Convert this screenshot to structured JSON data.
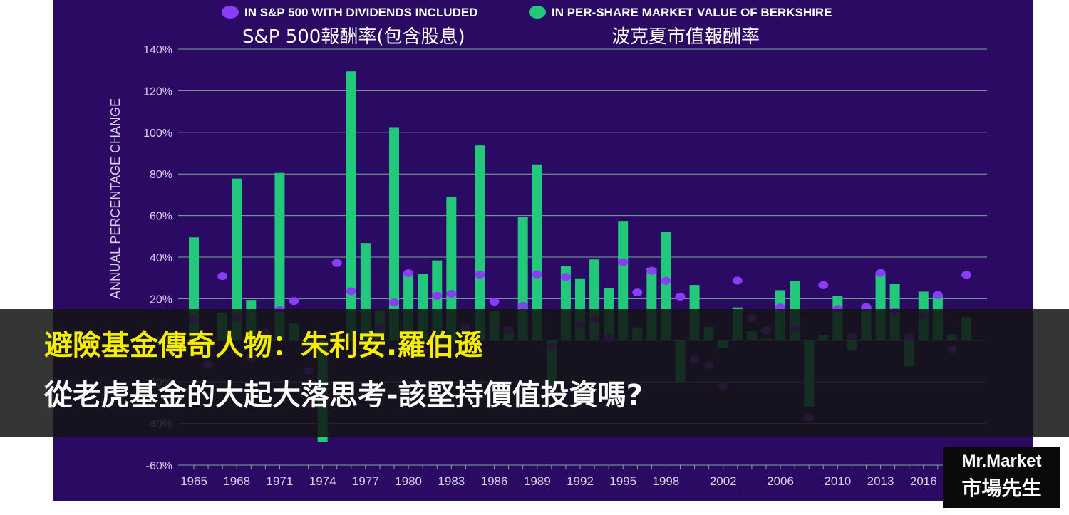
{
  "legend": {
    "sp500_label": "IN S&P 500 WITH DIVIDENDS INCLUDED",
    "berkshire_label": "IN PER-SHARE MARKET VALUE OF BERKSHIRE",
    "sp500_label_zh": "S&P 500報酬率(包含股息)",
    "berkshire_label_zh": "波克夏市值報酬率"
  },
  "headline": {
    "line1": "避險基金傳奇人物：朱利安.羅伯遜",
    "line2": "從老虎基金的大起大落思考-該堅持價值投資嗎?"
  },
  "brand": {
    "name_en": "Mr.Market",
    "name_zh": "市場先生"
  },
  "colors": {
    "background": "#2a0a63",
    "berkshire": "#22c97a",
    "sp500": "#8a3cff",
    "grid": "#7fa79a"
  },
  "chart_data": {
    "type": "bar",
    "ylabel": "ANNUAL PERCENTAGE CHANGE",
    "ylim": [
      -60,
      140
    ],
    "y_ticks": [
      "140%",
      "120%",
      "100%",
      "80%",
      "60%",
      "40%",
      "20%",
      "0%",
      "-20%",
      "-40%",
      "-60%"
    ],
    "x_tick_labels": [
      "1965",
      "1968",
      "1971",
      "1974",
      "1977",
      "1980",
      "1983",
      "1986",
      "1989",
      "1992",
      "1995",
      "1998",
      "2002",
      "2006",
      "2010",
      "2013",
      "2016"
    ],
    "grid": true,
    "legend_position": "top",
    "years": [
      1965,
      1966,
      1967,
      1968,
      1969,
      1970,
      1971,
      1972,
      1973,
      1974,
      1975,
      1976,
      1977,
      1978,
      1979,
      1980,
      1981,
      1982,
      1983,
      1984,
      1985,
      1986,
      1987,
      1988,
      1989,
      1990,
      1991,
      1992,
      1993,
      1994,
      1995,
      1996,
      1997,
      1998,
      1999,
      2000,
      2001,
      2002,
      2003,
      2004,
      2005,
      2006,
      2007,
      2008,
      2009,
      2010,
      2011,
      2012,
      2013,
      2014,
      2015,
      2016,
      2017,
      2018,
      2019
    ],
    "series": [
      {
        "name": "IN PER-SHARE MARKET VALUE OF BERKSHIRE",
        "kind": "bar",
        "values": [
          49.5,
          -3.4,
          13.3,
          77.8,
          19.4,
          -4.6,
          80.5,
          8.1,
          -2.5,
          -48.7,
          2.5,
          129.3,
          46.8,
          14.5,
          102.5,
          32.8,
          31.8,
          38.4,
          69.0,
          -2.7,
          93.7,
          14.2,
          4.6,
          59.3,
          84.6,
          -23.1,
          35.6,
          29.8,
          38.9,
          25.0,
          57.4,
          6.2,
          34.9,
          52.2,
          -19.9,
          26.6,
          6.5,
          -3.8,
          15.8,
          4.3,
          0.8,
          24.1,
          28.7,
          -31.8,
          2.7,
          21.4,
          -4.7,
          16.8,
          32.7,
          27.0,
          -12.5,
          23.4,
          21.9,
          2.8,
          11.0
        ]
      },
      {
        "name": "IN S&P 500 WITH DIVIDENDS INCLUDED",
        "kind": "dot",
        "values": [
          10.0,
          -11.7,
          30.9,
          11.0,
          -8.4,
          3.9,
          14.6,
          18.9,
          -14.8,
          -26.4,
          37.2,
          23.6,
          -7.4,
          6.4,
          18.2,
          32.3,
          -5.0,
          21.4,
          22.4,
          6.1,
          31.6,
          18.6,
          5.1,
          16.6,
          31.7,
          -3.1,
          30.5,
          7.6,
          10.1,
          1.3,
          37.6,
          23.0,
          33.4,
          28.6,
          21.0,
          -9.1,
          -11.9,
          -22.1,
          28.7,
          10.9,
          4.9,
          15.8,
          5.5,
          -37.0,
          26.5,
          15.1,
          2.1,
          16.0,
          32.4,
          13.7,
          1.4,
          12.0,
          21.8,
          -4.4,
          31.5
        ]
      }
    ]
  }
}
